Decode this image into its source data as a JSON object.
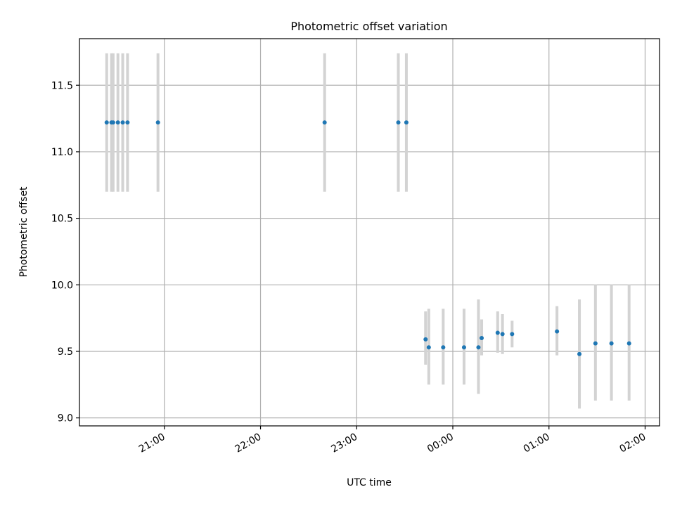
{
  "chart_data": {
    "type": "scatter",
    "title": "Photometric offset variation",
    "xlabel": "UTC time",
    "ylabel": "Photometric offset",
    "x_is_time": true,
    "xlim": [
      "20:07",
      "02:09"
    ],
    "ylim": [
      8.94,
      11.85
    ],
    "x_ticks": [
      "21:00",
      "22:00",
      "23:00",
      "00:00",
      "01:00",
      "02:00"
    ],
    "y_ticks": [
      "9.0",
      "9.5",
      "10.0",
      "10.5",
      "11.0",
      "11.5"
    ],
    "grid": true,
    "colors": {
      "points": "#1f77b4",
      "error_bars": "#d3d3d3",
      "grid": "#b0b0b0"
    },
    "points": [
      {
        "x": "20:24",
        "y": 11.22,
        "low": 10.7,
        "high": 11.74
      },
      {
        "x": "20:27",
        "y": 11.22,
        "low": 10.7,
        "high": 11.74
      },
      {
        "x": "20:28",
        "y": 11.22,
        "low": 10.7,
        "high": 11.74
      },
      {
        "x": "20:31",
        "y": 11.22,
        "low": 10.7,
        "high": 11.74
      },
      {
        "x": "20:34",
        "y": 11.22,
        "low": 10.7,
        "high": 11.74
      },
      {
        "x": "20:37",
        "y": 11.22,
        "low": 10.7,
        "high": 11.74
      },
      {
        "x": "20:56",
        "y": 11.22,
        "low": 10.7,
        "high": 11.74
      },
      {
        "x": "22:40",
        "y": 11.22,
        "low": 10.7,
        "high": 11.74
      },
      {
        "x": "23:26",
        "y": 11.22,
        "low": 10.7,
        "high": 11.74
      },
      {
        "x": "23:31",
        "y": 11.22,
        "low": 10.7,
        "high": 11.74
      },
      {
        "x": "23:43",
        "y": 9.59,
        "low": 9.4,
        "high": 9.8
      },
      {
        "x": "23:45",
        "y": 9.53,
        "low": 9.25,
        "high": 9.82
      },
      {
        "x": "23:54",
        "y": 9.53,
        "low": 9.25,
        "high": 9.82
      },
      {
        "x": "00:07",
        "y": 9.53,
        "low": 9.25,
        "high": 9.82
      },
      {
        "x": "00:16",
        "y": 9.53,
        "low": 9.18,
        "high": 9.89
      },
      {
        "x": "00:18",
        "y": 9.6,
        "low": 9.47,
        "high": 9.74
      },
      {
        "x": "00:28",
        "y": 9.64,
        "low": 9.49,
        "high": 9.8
      },
      {
        "x": "00:31",
        "y": 9.63,
        "low": 9.48,
        "high": 9.78
      },
      {
        "x": "00:37",
        "y": 9.63,
        "low": 9.53,
        "high": 9.73
      },
      {
        "x": "01:05",
        "y": 9.65,
        "low": 9.47,
        "high": 9.84
      },
      {
        "x": "01:19",
        "y": 9.48,
        "low": 9.07,
        "high": 9.89
      },
      {
        "x": "01:29",
        "y": 9.56,
        "low": 9.13,
        "high": 10.0
      },
      {
        "x": "01:39",
        "y": 9.56,
        "low": 9.13,
        "high": 10.0
      },
      {
        "x": "01:50",
        "y": 9.56,
        "low": 9.13,
        "high": 10.0
      }
    ]
  }
}
